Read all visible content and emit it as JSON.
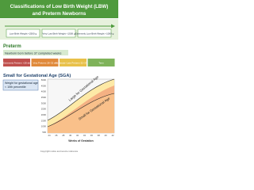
{
  "header": {
    "title_line1": "Classifications of Low Birth Weight (LBW)",
    "title_line2": "and Preterm Newborns"
  },
  "lbw": {
    "boxes": [
      "Low Birth Weight <2500 g",
      "Very Low Birth Weight <1500 g",
      "Extremely Low Birth Weight <1000 g"
    ]
  },
  "preterm": {
    "heading": "Preterm",
    "definition": "Newborn born before 37 completed weeks",
    "stages": [
      "Extremely Preterm <28 wk",
      "Very Preterm 28–32 wk",
      "Moderate–Late Preterm 32–37 wk",
      "Term"
    ]
  },
  "sga": {
    "heading": "Small for Gestational Age (SGA)",
    "definition_line1": "Weight for gestational age",
    "definition_line2": "< 10th percentile",
    "chart": {
      "label_large": "Large for Gestational Age",
      "label_small": "Small for Gestational Age",
      "yticks": [
        "5000",
        "4500",
        "4000",
        "3500",
        "3000",
        "2500",
        "2000",
        "1500",
        "1000",
        "500"
      ],
      "xticks": [
        "24",
        "26",
        "28",
        "30",
        "32",
        "34",
        "36",
        "38",
        "40",
        "42"
      ],
      "xlabel": "Weeks of Gestation"
    }
  },
  "footer": "Copyright notice and source reference"
}
